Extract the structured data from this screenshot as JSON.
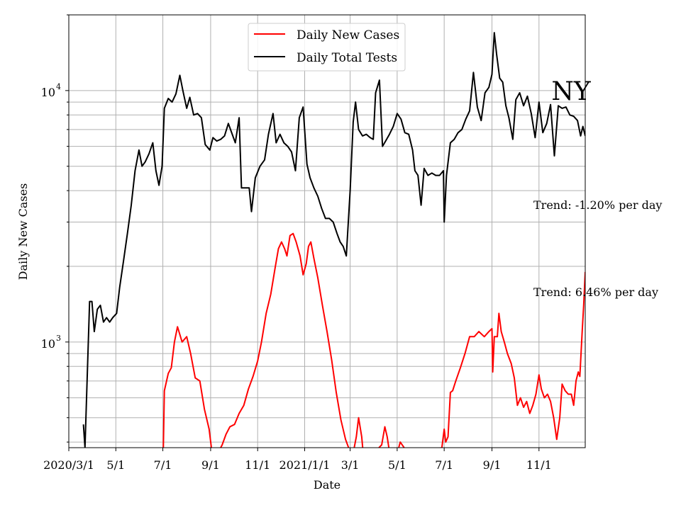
{
  "chart_data": {
    "type": "line",
    "title": "NY",
    "xlabel": "Date",
    "ylabel": "Daily New Cases",
    "y_scale": "log",
    "ylim": [
      380,
      20000
    ],
    "xlim": [
      "2020-03-01",
      "2021-12-31"
    ],
    "grid": true,
    "legend_position": "top-center",
    "x_ticks": [
      {
        "date": "2020-03-01",
        "label": "2020/3/1"
      },
      {
        "date": "2020-05-01",
        "label": "5/1"
      },
      {
        "date": "2020-07-01",
        "label": "7/1"
      },
      {
        "date": "2020-09-01",
        "label": "9/1"
      },
      {
        "date": "2020-11-01",
        "label": "11/1"
      },
      {
        "date": "2021-01-01",
        "label": "2021/1/1"
      },
      {
        "date": "2021-03-01",
        "label": "3/1"
      },
      {
        "date": "2021-05-01",
        "label": "5/1"
      },
      {
        "date": "2021-07-01",
        "label": "7/1"
      },
      {
        "date": "2021-09-01",
        "label": "9/1"
      },
      {
        "date": "2021-11-01",
        "label": "11/1"
      }
    ],
    "y_major_ticks": [
      {
        "value": 1000,
        "base": "10",
        "exp": "3"
      },
      {
        "value": 10000,
        "base": "10",
        "exp": "4"
      }
    ],
    "annotations": [
      "Trend: -1.20% per day",
      "Trend: 6.46% per day"
    ],
    "series": [
      {
        "name": "Daily New Cases",
        "color": "#ff0000",
        "points": [
          [
            "2020-07-01",
            300
          ],
          [
            "2020-07-03",
            640
          ],
          [
            "2020-07-08",
            750
          ],
          [
            "2020-07-12",
            790
          ],
          [
            "2020-07-16",
            1000
          ],
          [
            "2020-07-20",
            1150
          ],
          [
            "2020-07-26",
            1000
          ],
          [
            "2020-08-01",
            1050
          ],
          [
            "2020-08-06",
            900
          ],
          [
            "2020-08-12",
            720
          ],
          [
            "2020-08-18",
            700
          ],
          [
            "2020-08-24",
            540
          ],
          [
            "2020-08-30",
            450
          ],
          [
            "2020-09-02",
            380
          ],
          [
            "2020-09-06",
            330
          ],
          [
            "2020-09-10",
            360
          ],
          [
            "2020-09-16",
            390
          ],
          [
            "2020-09-21",
            430
          ],
          [
            "2020-09-26",
            460
          ],
          [
            "2020-10-02",
            470
          ],
          [
            "2020-10-08",
            520
          ],
          [
            "2020-10-14",
            560
          ],
          [
            "2020-10-20",
            650
          ],
          [
            "2020-10-26",
            730
          ],
          [
            "2020-11-01",
            840
          ],
          [
            "2020-11-06",
            1000
          ],
          [
            "2020-11-12",
            1300
          ],
          [
            "2020-11-18",
            1550
          ],
          [
            "2020-11-24",
            2000
          ],
          [
            "2020-11-28",
            2350
          ],
          [
            "2020-12-02",
            2500
          ],
          [
            "2020-12-06",
            2350
          ],
          [
            "2020-12-09",
            2200
          ],
          [
            "2020-12-13",
            2650
          ],
          [
            "2020-12-17",
            2700
          ],
          [
            "2020-12-21",
            2500
          ],
          [
            "2020-12-26",
            2200
          ],
          [
            "2020-12-30",
            1850
          ],
          [
            "2021-01-03",
            2050
          ],
          [
            "2021-01-06",
            2400
          ],
          [
            "2021-01-09",
            2500
          ],
          [
            "2021-01-13",
            2150
          ],
          [
            "2021-01-18",
            1800
          ],
          [
            "2021-01-24",
            1400
          ],
          [
            "2021-01-30",
            1100
          ],
          [
            "2021-02-05",
            850
          ],
          [
            "2021-02-11",
            630
          ],
          [
            "2021-02-17",
            490
          ],
          [
            "2021-02-23",
            410
          ],
          [
            "2021-02-27",
            380
          ],
          [
            "2021-03-04",
            350
          ],
          [
            "2021-03-09",
            420
          ],
          [
            "2021-03-12",
            500
          ],
          [
            "2021-03-16",
            420
          ],
          [
            "2021-03-19",
            330
          ],
          [
            "2021-04-11",
            390
          ],
          [
            "2021-04-15",
            460
          ],
          [
            "2021-04-18",
            420
          ],
          [
            "2021-04-22",
            350
          ],
          [
            "2021-05-02",
            370
          ],
          [
            "2021-05-05",
            400
          ],
          [
            "2021-05-10",
            380
          ],
          [
            "2021-05-14",
            360
          ],
          [
            "2021-06-28",
            380
          ],
          [
            "2021-07-01",
            450
          ],
          [
            "2021-07-03",
            400
          ],
          [
            "2021-07-06",
            420
          ],
          [
            "2021-07-09",
            630
          ],
          [
            "2021-07-12",
            640
          ],
          [
            "2021-07-16",
            700
          ],
          [
            "2021-07-22",
            790
          ],
          [
            "2021-07-28",
            900
          ],
          [
            "2021-08-03",
            1050
          ],
          [
            "2021-08-09",
            1050
          ],
          [
            "2021-08-15",
            1100
          ],
          [
            "2021-08-22",
            1050
          ],
          [
            "2021-08-28",
            1100
          ],
          [
            "2021-09-01",
            1130
          ],
          [
            "2021-09-02",
            760
          ],
          [
            "2021-09-04",
            1050
          ],
          [
            "2021-09-08",
            1050
          ],
          [
            "2021-09-10",
            1300
          ],
          [
            "2021-09-13",
            1100
          ],
          [
            "2021-09-17",
            1000
          ],
          [
            "2021-09-21",
            900
          ],
          [
            "2021-09-26",
            820
          ],
          [
            "2021-09-30",
            720
          ],
          [
            "2021-10-04",
            560
          ],
          [
            "2021-10-08",
            600
          ],
          [
            "2021-10-12",
            550
          ],
          [
            "2021-10-16",
            580
          ],
          [
            "2021-10-20",
            520
          ],
          [
            "2021-10-24",
            560
          ],
          [
            "2021-10-28",
            620
          ],
          [
            "2021-11-01",
            740
          ],
          [
            "2021-11-04",
            650
          ],
          [
            "2021-11-08",
            600
          ],
          [
            "2021-11-12",
            620
          ],
          [
            "2021-11-16",
            580
          ],
          [
            "2021-11-20",
            500
          ],
          [
            "2021-11-24",
            410
          ],
          [
            "2021-11-28",
            500
          ],
          [
            "2021-12-01",
            680
          ],
          [
            "2021-12-05",
            640
          ],
          [
            "2021-12-09",
            620
          ],
          [
            "2021-12-13",
            620
          ],
          [
            "2021-12-16",
            560
          ],
          [
            "2021-12-19",
            700
          ],
          [
            "2021-12-22",
            760
          ],
          [
            "2021-12-24",
            730
          ],
          [
            "2021-12-27",
            1100
          ],
          [
            "2021-12-29",
            1400
          ],
          [
            "2021-12-31",
            1900
          ]
        ]
      },
      {
        "name": "Daily Total Tests",
        "color": "#000000",
        "points": [
          [
            "2020-03-20",
            470
          ],
          [
            "2020-03-22",
            380
          ],
          [
            "2020-03-28",
            1450
          ],
          [
            "2020-03-31",
            1450
          ],
          [
            "2020-04-03",
            1100
          ],
          [
            "2020-04-07",
            1350
          ],
          [
            "2020-04-11",
            1400
          ],
          [
            "2020-04-15",
            1200
          ],
          [
            "2020-04-19",
            1250
          ],
          [
            "2020-04-23",
            1200
          ],
          [
            "2020-04-27",
            1250
          ],
          [
            "2020-05-02",
            1300
          ],
          [
            "2020-05-06",
            1650
          ],
          [
            "2020-05-11",
            2100
          ],
          [
            "2020-05-16",
            2700
          ],
          [
            "2020-05-21",
            3500
          ],
          [
            "2020-05-26",
            4800
          ],
          [
            "2020-05-31",
            5800
          ],
          [
            "2020-06-04",
            5000
          ],
          [
            "2020-06-08",
            5200
          ],
          [
            "2020-06-13",
            5600
          ],
          [
            "2020-06-18",
            6200
          ],
          [
            "2020-06-22",
            4800
          ],
          [
            "2020-06-26",
            4200
          ],
          [
            "2020-06-30",
            5000
          ],
          [
            "2020-07-03",
            8500
          ],
          [
            "2020-07-08",
            9300
          ],
          [
            "2020-07-13",
            9000
          ],
          [
            "2020-07-18",
            9700
          ],
          [
            "2020-07-23",
            11500
          ],
          [
            "2020-07-27",
            10000
          ],
          [
            "2020-08-01",
            8500
          ],
          [
            "2020-08-05",
            9400
          ],
          [
            "2020-08-10",
            8000
          ],
          [
            "2020-08-15",
            8100
          ],
          [
            "2020-08-20",
            7800
          ],
          [
            "2020-08-25",
            6100
          ],
          [
            "2020-08-31",
            5800
          ],
          [
            "2020-09-04",
            6500
          ],
          [
            "2020-09-09",
            6300
          ],
          [
            "2020-09-14",
            6400
          ],
          [
            "2020-09-19",
            6600
          ],
          [
            "2020-09-24",
            7400
          ],
          [
            "2020-09-29",
            6700
          ],
          [
            "2020-10-03",
            6200
          ],
          [
            "2020-10-08",
            7800
          ],
          [
            "2020-10-11",
            4100
          ],
          [
            "2020-10-17",
            4100
          ],
          [
            "2020-10-21",
            4100
          ],
          [
            "2020-10-24",
            3300
          ],
          [
            "2020-10-29",
            4500
          ],
          [
            "2020-11-04",
            5000
          ],
          [
            "2020-11-10",
            5300
          ],
          [
            "2020-11-15",
            6700
          ],
          [
            "2020-11-21",
            8100
          ],
          [
            "2020-11-25",
            6200
          ],
          [
            "2020-11-30",
            6700
          ],
          [
            "2020-12-05",
            6200
          ],
          [
            "2020-12-10",
            6000
          ],
          [
            "2020-12-15",
            5700
          ],
          [
            "2020-12-20",
            4800
          ],
          [
            "2020-12-25",
            7800
          ],
          [
            "2020-12-30",
            8600
          ],
          [
            "2021-01-04",
            5100
          ],
          [
            "2021-01-08",
            4500
          ],
          [
            "2021-01-13",
            4100
          ],
          [
            "2021-01-18",
            3800
          ],
          [
            "2021-01-23",
            3400
          ],
          [
            "2021-01-28",
            3100
          ],
          [
            "2021-02-02",
            3100
          ],
          [
            "2021-02-07",
            3000
          ],
          [
            "2021-02-12",
            2700
          ],
          [
            "2021-02-16",
            2500
          ],
          [
            "2021-02-20",
            2400
          ],
          [
            "2021-02-24",
            2200
          ],
          [
            "2021-03-01",
            4000
          ],
          [
            "2021-03-05",
            7500
          ],
          [
            "2021-03-08",
            9000
          ],
          [
            "2021-03-12",
            7000
          ],
          [
            "2021-03-17",
            6600
          ],
          [
            "2021-03-22",
            6700
          ],
          [
            "2021-03-27",
            6500
          ],
          [
            "2021-03-31",
            6400
          ],
          [
            "2021-04-03",
            9800
          ],
          [
            "2021-04-08",
            11000
          ],
          [
            "2021-04-12",
            6000
          ],
          [
            "2021-04-16",
            6300
          ],
          [
            "2021-04-21",
            6700
          ],
          [
            "2021-04-26",
            7200
          ],
          [
            "2021-05-01",
            8100
          ],
          [
            "2021-05-06",
            7700
          ],
          [
            "2021-05-11",
            6800
          ],
          [
            "2021-05-16",
            6700
          ],
          [
            "2021-05-21",
            5800
          ],
          [
            "2021-05-24",
            4800
          ],
          [
            "2021-05-28",
            4600
          ],
          [
            "2021-06-01",
            3500
          ],
          [
            "2021-06-05",
            4900
          ],
          [
            "2021-06-10",
            4600
          ],
          [
            "2021-06-15",
            4700
          ],
          [
            "2021-06-20",
            4600
          ],
          [
            "2021-06-25",
            4600
          ],
          [
            "2021-06-30",
            4800
          ],
          [
            "2021-07-01",
            3000
          ],
          [
            "2021-07-04",
            4600
          ],
          [
            "2021-07-09",
            6200
          ],
          [
            "2021-07-14",
            6400
          ],
          [
            "2021-07-19",
            6800
          ],
          [
            "2021-07-24",
            7000
          ],
          [
            "2021-07-29",
            7700
          ],
          [
            "2021-08-03",
            8300
          ],
          [
            "2021-08-08",
            11800
          ],
          [
            "2021-08-13",
            8600
          ],
          [
            "2021-08-18",
            7600
          ],
          [
            "2021-08-23",
            9800
          ],
          [
            "2021-08-28",
            10300
          ],
          [
            "2021-09-01",
            11600
          ],
          [
            "2021-09-04",
            17000
          ],
          [
            "2021-09-07",
            14000
          ],
          [
            "2021-09-11",
            11200
          ],
          [
            "2021-09-15",
            10800
          ],
          [
            "2021-09-19",
            8700
          ],
          [
            "2021-09-23",
            7800
          ],
          [
            "2021-09-28",
            6400
          ],
          [
            "2021-10-02",
            9200
          ],
          [
            "2021-10-07",
            9800
          ],
          [
            "2021-10-12",
            8700
          ],
          [
            "2021-10-17",
            9500
          ],
          [
            "2021-10-22",
            8100
          ],
          [
            "2021-10-27",
            6500
          ],
          [
            "2021-11-01",
            9000
          ],
          [
            "2021-11-06",
            6800
          ],
          [
            "2021-11-11",
            7400
          ],
          [
            "2021-11-16",
            8800
          ],
          [
            "2021-11-21",
            5500
          ],
          [
            "2021-11-26",
            8700
          ],
          [
            "2021-12-01",
            8500
          ],
          [
            "2021-12-06",
            8600
          ],
          [
            "2021-12-11",
            8000
          ],
          [
            "2021-12-16",
            7900
          ],
          [
            "2021-12-21",
            7600
          ],
          [
            "2021-12-25",
            6600
          ],
          [
            "2021-12-28",
            7200
          ],
          [
            "2021-12-31",
            6600
          ]
        ]
      }
    ]
  }
}
